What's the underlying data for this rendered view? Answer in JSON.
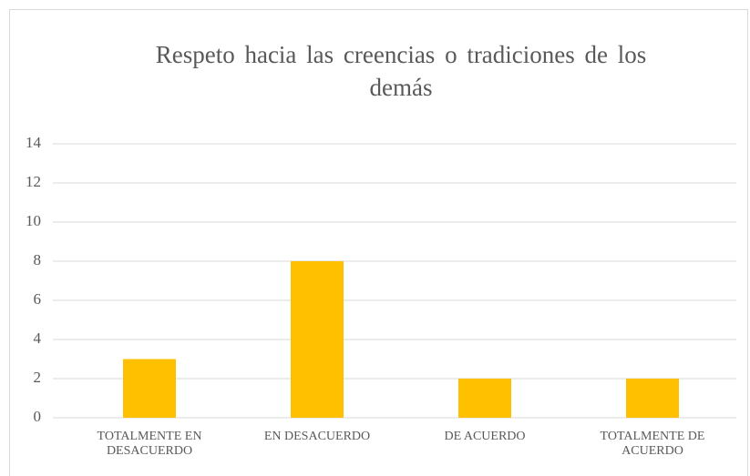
{
  "chart_data": {
    "type": "bar",
    "title": "Respeto hacia las creencias o tradiciones de los demás",
    "categories": [
      "TOTALMENTE EN DESACUERDO",
      "EN DESACUERDO",
      "DE ACUERDO",
      "TOTALMENTE DE ACUERDO"
    ],
    "values": [
      3,
      8,
      2,
      2
    ],
    "color": "#ffc000",
    "ylim": [
      0,
      14
    ],
    "yticks": [
      0,
      2,
      4,
      6,
      8,
      10,
      12,
      14
    ],
    "grid": true
  }
}
